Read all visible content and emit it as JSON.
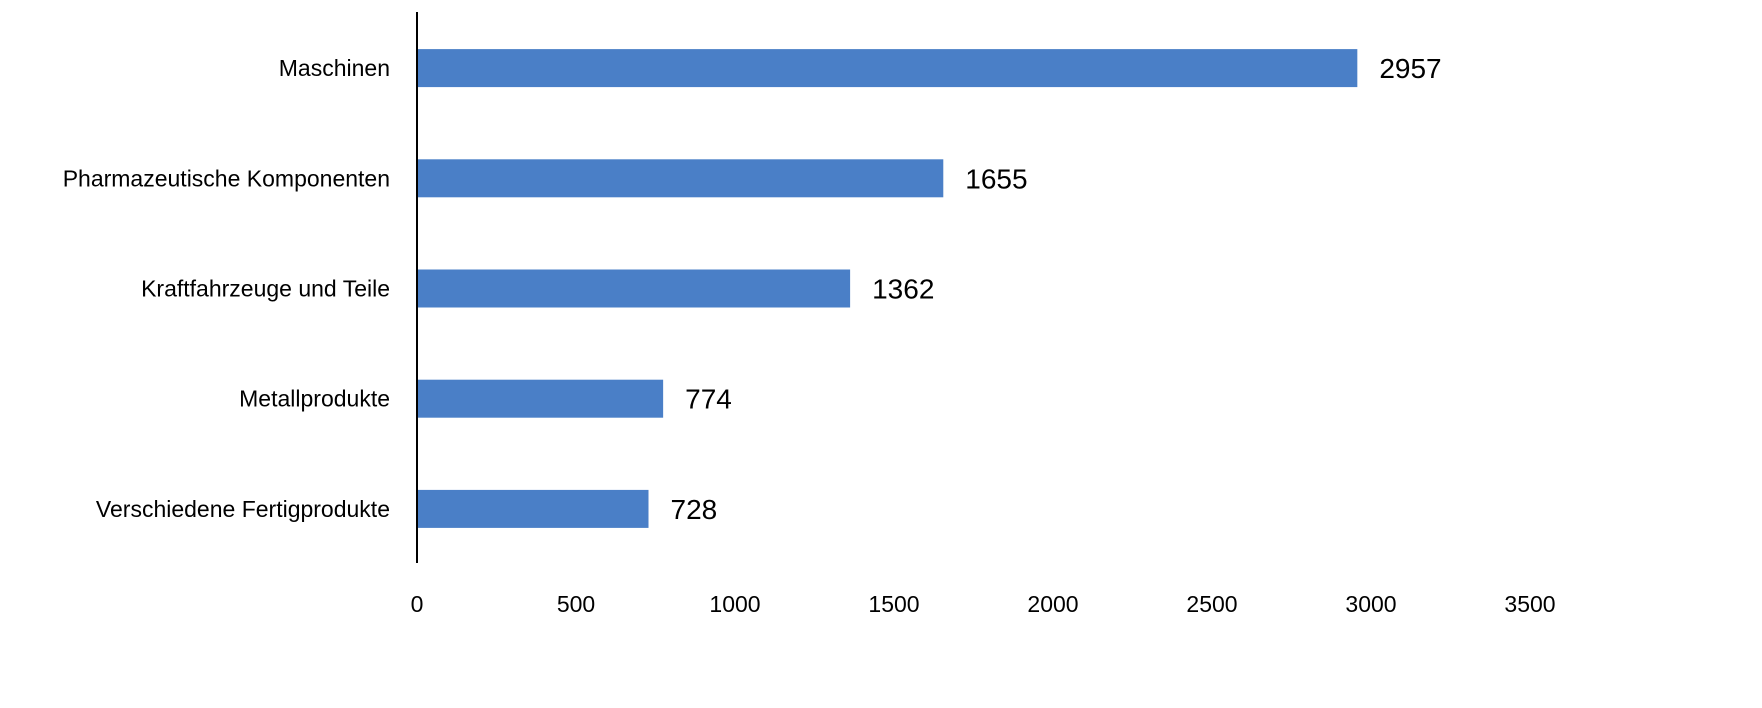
{
  "chart_data": {
    "type": "bar",
    "orientation": "horizontal",
    "categories": [
      "Maschinen",
      "Pharmazeutische Komponenten",
      "Kraftfahrzeuge und Teile",
      "Metallprodukte",
      "Verschiedene Fertigprodukte"
    ],
    "values": [
      2957,
      1655,
      1362,
      774,
      728
    ],
    "data_labels": [
      "2957",
      "1655",
      "1362",
      "774",
      "728"
    ],
    "title": "",
    "xlabel": "",
    "ylabel": "",
    "xlim": [
      0,
      3500
    ],
    "xticks": [
      0,
      500,
      1000,
      1500,
      2000,
      2500,
      3000,
      3500
    ],
    "xtick_labels": [
      "0",
      "500",
      "1000",
      "1500",
      "2000",
      "2500",
      "3000",
      "3500"
    ],
    "grid": false,
    "legend": "none",
    "colors": {
      "bar": "#4a7fc7",
      "axis": "#000000"
    }
  }
}
